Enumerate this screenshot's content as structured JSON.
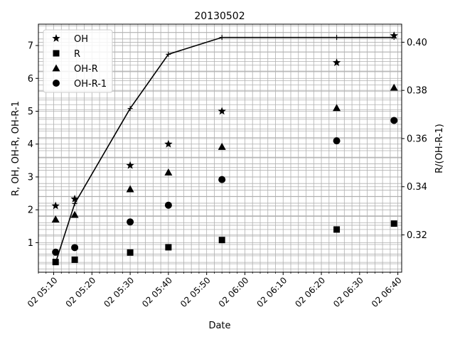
{
  "chart_data": {
    "type": "scatter",
    "title": "20130502",
    "xlabel": "Date",
    "ylabel": "R, OH, OH-R, OH-R-1",
    "y2label": "R/(OH-R-1)",
    "x_ticks": [
      "02 05:10",
      "02 05:20",
      "02 05:30",
      "02 05:40",
      "02 05:50",
      "02 06:00",
      "02 06:10",
      "02 06:20",
      "02 06:30",
      "02 06:40"
    ],
    "y_ticks": [
      "1",
      "2",
      "3",
      "4",
      "5",
      "6",
      "7"
    ],
    "y2_ticks": [
      "0.32",
      "0.34",
      "0.36",
      "0.38",
      "0.40"
    ],
    "xlim": [
      "2013-05-02 05:06",
      "2013-05-02 06:41"
    ],
    "ylim": [
      0.1,
      7.65
    ],
    "y2lim": [
      0.3045,
      0.4075
    ],
    "grid": true,
    "legend_position": "top-left",
    "x": [
      "2013-05-02 05:10:30",
      "2013-05-02 05:15:30",
      "2013-05-02 05:30:00",
      "2013-05-02 05:40:00",
      "2013-05-02 05:54:00",
      "2013-05-02 06:24:00",
      "2013-05-02 06:39:00"
    ],
    "series": [
      {
        "name": "OH",
        "marker": "star",
        "values": [
          2.12,
          2.33,
          3.35,
          4.0,
          5.0,
          6.48,
          7.3
        ]
      },
      {
        "name": "R",
        "marker": "square",
        "values": [
          0.41,
          0.48,
          0.7,
          0.86,
          1.08,
          1.4,
          1.58
        ]
      },
      {
        "name": "OH-R",
        "marker": "triangle",
        "values": [
          1.71,
          1.85,
          2.63,
          3.14,
          3.92,
          5.1,
          5.72
        ]
      },
      {
        "name": "OH-R-1",
        "marker": "circle",
        "values": [
          0.71,
          0.85,
          1.63,
          2.14,
          2.92,
          4.1,
          4.72
        ]
      }
    ],
    "ratio_series": {
      "axis": "right",
      "values": [
        0.3085,
        0.333,
        0.3725,
        0.395,
        0.402,
        0.402,
        0.402
      ]
    }
  }
}
